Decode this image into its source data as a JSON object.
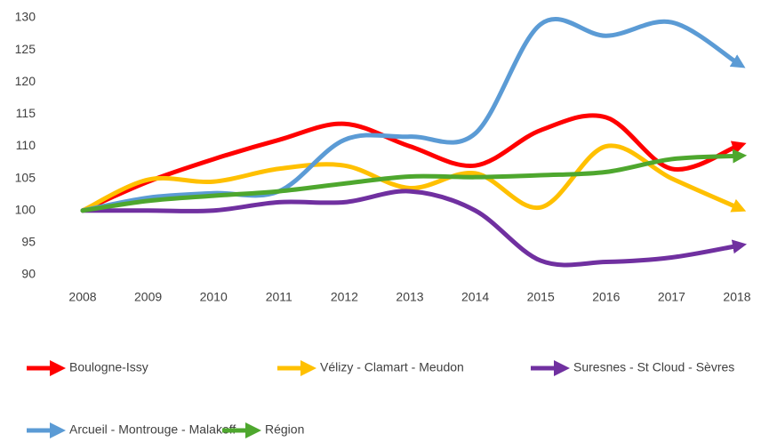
{
  "chart_data": {
    "type": "line",
    "categories": [
      "2008",
      "2009",
      "2010",
      "2011",
      "2012",
      "2013",
      "2014",
      "2015",
      "2016",
      "2017",
      "2018"
    ],
    "ylim": [
      90,
      130
    ],
    "yticks": [
      90,
      95,
      100,
      105,
      110,
      115,
      120,
      125,
      130
    ],
    "grid": false,
    "series": [
      {
        "name": "Boulogne-Issy",
        "color": "#ff0000",
        "values": [
          100,
          104.5,
          108,
          111,
          113.5,
          110,
          107,
          112.5,
          114.5,
          106.5,
          110
        ]
      },
      {
        "name": "Vélizy - Clamart - Meudon",
        "color": "#ffc000",
        "values": [
          100,
          104.8,
          104.5,
          106.5,
          107,
          103.5,
          105.8,
          100.5,
          110,
          105,
          100.5
        ]
      },
      {
        "name": "Suresnes - St Cloud - Sèvres",
        "color": "#7030a0",
        "values": [
          100,
          100,
          100,
          101.3,
          101.3,
          103,
          100,
          92.2,
          92,
          92.7,
          94.5
        ]
      },
      {
        "name": "Arcueil - Montrouge - Malakoff",
        "color": "#5b9bd5",
        "values": [
          100,
          102,
          102.7,
          103,
          111,
          111.5,
          112,
          129,
          127.2,
          129.3,
          123
        ]
      },
      {
        "name": "Région",
        "color": "#4ea72e",
        "values": [
          100,
          101.5,
          102.3,
          103,
          104.2,
          105.3,
          105.2,
          105.5,
          106,
          108,
          108.5
        ]
      }
    ]
  }
}
